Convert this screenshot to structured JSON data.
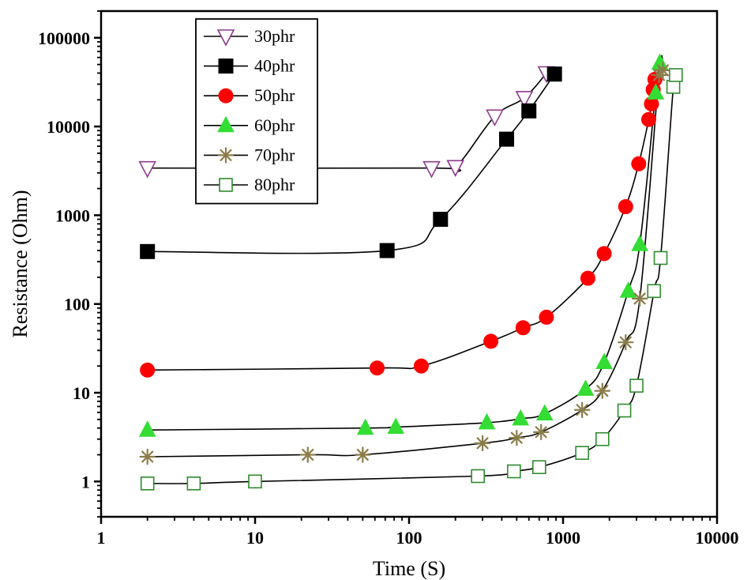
{
  "chart_data": {
    "type": "scatter",
    "title": "",
    "xlabel": "Time (S)",
    "ylabel": "Resistance (Ohm)",
    "xscale": "log",
    "yscale": "log",
    "xlim": [
      1,
      10000
    ],
    "ylim": [
      0.4,
      200000
    ],
    "x_ticks": [
      1,
      10,
      100,
      1000,
      10000
    ],
    "x_tick_labels": [
      "1",
      "10",
      "100",
      "1000",
      "10000"
    ],
    "y_ticks": [
      1,
      10,
      100,
      1000,
      10000,
      100000
    ],
    "y_tick_labels": [
      "1",
      "10",
      "100",
      "1000",
      "10000",
      "100000"
    ],
    "grid": false,
    "legend_position": "top-left",
    "series": [
      {
        "name": "30phr",
        "marker": "triangle-down-open",
        "color": "#8e3a8e",
        "x": [
          2,
          140,
          200,
          360,
          560,
          780
        ],
        "y": [
          3400,
          3400,
          3500,
          13000,
          21000,
          40000
        ]
      },
      {
        "name": "40phr",
        "marker": "square-filled",
        "color": "#000000",
        "x": [
          2,
          72,
          160,
          430,
          600,
          880
        ],
        "y": [
          390,
          400,
          900,
          7200,
          15000,
          39000
        ]
      },
      {
        "name": "50phr",
        "marker": "circle-filled",
        "color": "#ff0000",
        "x": [
          2,
          62,
          120,
          340,
          550,
          780,
          1450,
          1850,
          2550,
          3100,
          3600,
          3750,
          3850,
          3950
        ],
        "y": [
          18,
          19,
          20,
          38,
          54,
          71,
          195,
          370,
          1250,
          3800,
          12000,
          18000,
          26000,
          34000
        ]
      },
      {
        "name": "60phr",
        "marker": "triangle-up-filled",
        "color": "#33dd33",
        "x": [
          2,
          52,
          82,
          320,
          530,
          760,
          1400,
          1850,
          2650,
          3150,
          4000,
          4250
        ],
        "y": [
          3.8,
          4.0,
          4.1,
          4.6,
          5.1,
          5.8,
          11,
          22,
          140,
          470,
          24000,
          52000
        ]
      },
      {
        "name": "70phr",
        "marker": "asterisk",
        "color": "#8b7d4a",
        "x": [
          2,
          22,
          50,
          300,
          500,
          720,
          1330,
          1800,
          2550,
          3150,
          4200,
          4450
        ],
        "y": [
          1.9,
          2.0,
          2.0,
          2.7,
          3.1,
          3.6,
          6.4,
          10.5,
          37,
          115,
          38000,
          43000
        ]
      },
      {
        "name": "80phr",
        "marker": "square-open",
        "color": "#2e8b2e",
        "x": [
          2,
          4,
          10,
          280,
          480,
          700,
          1330,
          1800,
          2500,
          3000,
          3900,
          4300,
          5200,
          5400
        ],
        "y": [
          0.95,
          0.95,
          1.0,
          1.15,
          1.3,
          1.45,
          2.1,
          3.0,
          6.3,
          12,
          140,
          330,
          28000,
          38000
        ]
      }
    ]
  }
}
